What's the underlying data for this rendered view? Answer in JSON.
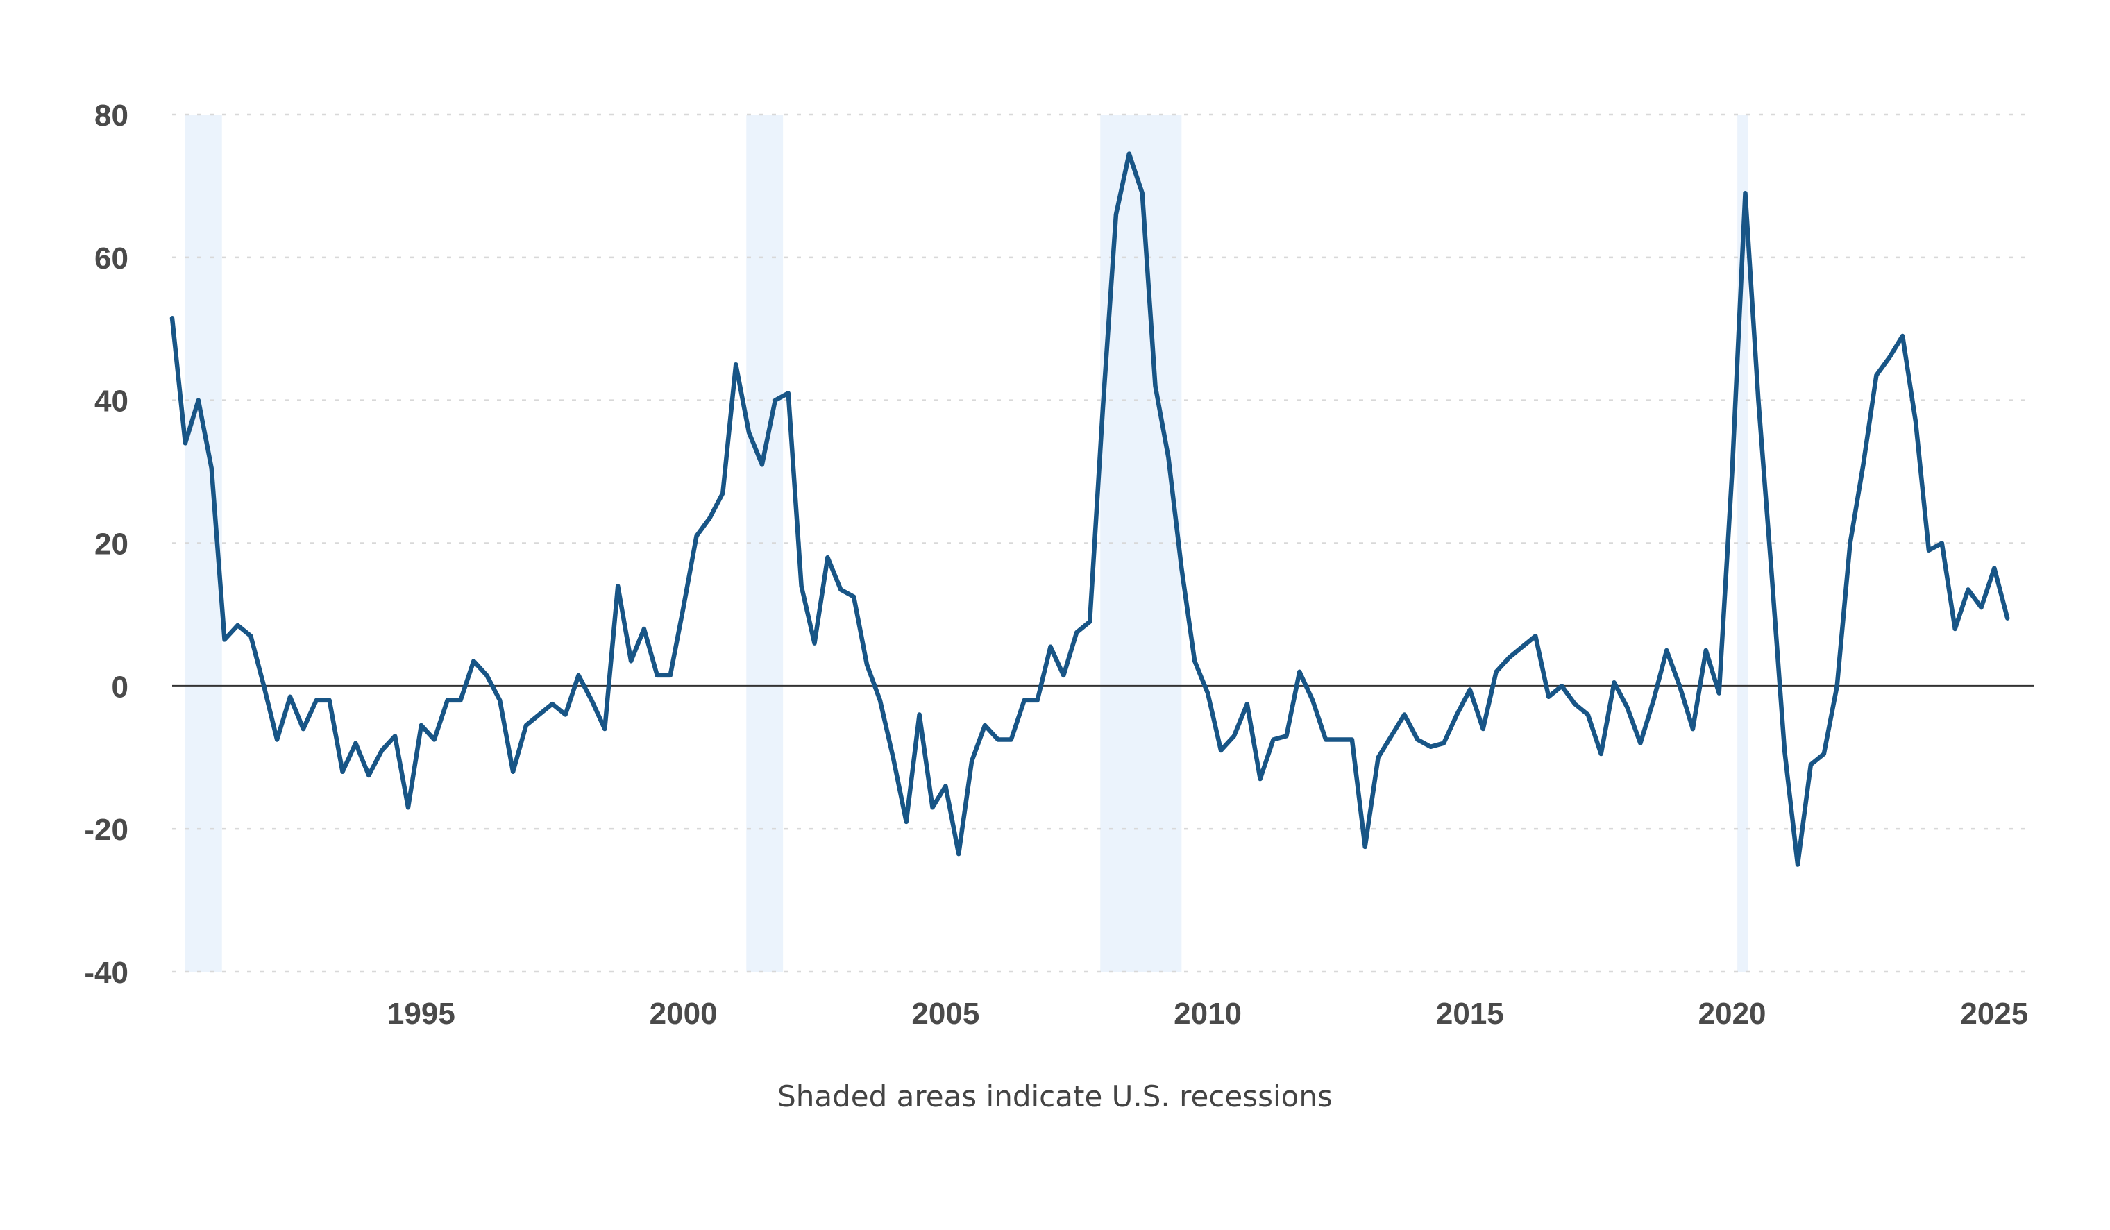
{
  "colors": {
    "line": "#185586",
    "recession": "#ebf3fc",
    "grid": "#d8d8d8",
    "zero": "#333333",
    "text": "#4a4a4a"
  },
  "caption": "Shaded areas indicate U.S. recessions",
  "chart_data": {
    "type": "line",
    "title": "",
    "xlabel": "",
    "ylabel": "",
    "xlim": [
      1990.25,
      2025.75
    ],
    "ylim": [
      -40,
      80
    ],
    "grid": true,
    "y_ticks": [
      80,
      60,
      40,
      20,
      0,
      -20,
      -40
    ],
    "y_tick_labels": [
      "80",
      "60",
      "40",
      "20",
      "0",
      "-20",
      "-40"
    ],
    "x_ticks": [
      1995,
      2000,
      2005,
      2010,
      2015,
      2020,
      2025
    ],
    "x_tick_labels": [
      "1995",
      "2000",
      "2005",
      "2010",
      "2015",
      "2020",
      "2025"
    ],
    "recessions": [
      [
        1990.5,
        1991.2
      ],
      [
        2001.2,
        2001.9
      ],
      [
        2007.95,
        2009.5
      ],
      [
        2020.1,
        2020.3
      ]
    ],
    "series": [
      {
        "points": [
          [
            1990.25,
            51.5
          ],
          [
            1990.5,
            34
          ],
          [
            1990.75,
            40
          ],
          [
            1991.0,
            30.5
          ],
          [
            1991.25,
            6.5
          ],
          [
            1991.5,
            8.5
          ],
          [
            1991.75,
            7
          ],
          [
            1992.0,
            0
          ],
          [
            1992.25,
            -7.5
          ],
          [
            1992.5,
            -1.5
          ],
          [
            1992.75,
            -6
          ],
          [
            1993.0,
            -2
          ],
          [
            1993.25,
            -2
          ],
          [
            1993.5,
            -12
          ],
          [
            1993.75,
            -8
          ],
          [
            1994.0,
            -12.5
          ],
          [
            1994.25,
            -9
          ],
          [
            1994.5,
            -7
          ],
          [
            1994.75,
            -17
          ],
          [
            1995.0,
            -5.5
          ],
          [
            1995.25,
            -7.5
          ],
          [
            1995.5,
            -2
          ],
          [
            1995.75,
            -2
          ],
          [
            1996.0,
            3.5
          ],
          [
            1996.25,
            1.5
          ],
          [
            1996.5,
            -2
          ],
          [
            1996.75,
            -12
          ],
          [
            1997.0,
            -5.5
          ],
          [
            1997.25,
            -4
          ],
          [
            1997.5,
            -2.5
          ],
          [
            1997.75,
            -4
          ],
          [
            1998.0,
            1.5
          ],
          [
            1998.25,
            -2
          ],
          [
            1998.5,
            -6
          ],
          [
            1998.75,
            14
          ],
          [
            1999.0,
            3.5
          ],
          [
            1999.25,
            8
          ],
          [
            1999.5,
            1.5
          ],
          [
            1999.75,
            1.5
          ],
          [
            2000.0,
            11
          ],
          [
            2000.25,
            21
          ],
          [
            2000.5,
            23.5
          ],
          [
            2000.75,
            27
          ],
          [
            2001.0,
            45
          ],
          [
            2001.25,
            35.5
          ],
          [
            2001.5,
            31
          ],
          [
            2001.75,
            40
          ],
          [
            2002.0,
            41
          ],
          [
            2002.25,
            14
          ],
          [
            2002.5,
            6
          ],
          [
            2002.75,
            18
          ],
          [
            2003.0,
            13.5
          ],
          [
            2003.25,
            12.5
          ],
          [
            2003.5,
            3
          ],
          [
            2003.75,
            -2
          ],
          [
            2004.0,
            -10
          ],
          [
            2004.25,
            -19
          ],
          [
            2004.5,
            -4
          ],
          [
            2004.75,
            -17
          ],
          [
            2005.0,
            -14
          ],
          [
            2005.25,
            -23.5
          ],
          [
            2005.5,
            -10.5
          ],
          [
            2005.75,
            -5.5
          ],
          [
            2006.0,
            -7.5
          ],
          [
            2006.25,
            -7.5
          ],
          [
            2006.5,
            -2
          ],
          [
            2006.75,
            -2
          ],
          [
            2007.0,
            5.5
          ],
          [
            2007.25,
            1.5
          ],
          [
            2007.5,
            7.5
          ],
          [
            2007.75,
            9
          ],
          [
            2008.0,
            39
          ],
          [
            2008.25,
            66
          ],
          [
            2008.5,
            74.5
          ],
          [
            2008.75,
            69
          ],
          [
            2009.0,
            42
          ],
          [
            2009.25,
            32
          ],
          [
            2009.5,
            16.5
          ],
          [
            2009.75,
            3.5
          ],
          [
            2010.0,
            -1
          ],
          [
            2010.25,
            -9
          ],
          [
            2010.5,
            -7
          ],
          [
            2010.75,
            -2.5
          ],
          [
            2011.0,
            -13
          ],
          [
            2011.25,
            -7.5
          ],
          [
            2011.5,
            -7
          ],
          [
            2011.75,
            2
          ],
          [
            2012.0,
            -2
          ],
          [
            2012.25,
            -7.5
          ],
          [
            2012.5,
            -7.5
          ],
          [
            2012.75,
            -7.5
          ],
          [
            2013.0,
            -22.5
          ],
          [
            2013.25,
            -10
          ],
          [
            2013.5,
            -7
          ],
          [
            2013.75,
            -4
          ],
          [
            2014.0,
            -7.5
          ],
          [
            2014.25,
            -8.5
          ],
          [
            2014.5,
            -8
          ],
          [
            2014.75,
            -4
          ],
          [
            2015.0,
            -0.5
          ],
          [
            2015.25,
            -6
          ],
          [
            2015.5,
            2
          ],
          [
            2015.75,
            4
          ],
          [
            2016.0,
            5.5
          ],
          [
            2016.25,
            7
          ],
          [
            2016.5,
            -1.5
          ],
          [
            2016.75,
            0
          ],
          [
            2017.0,
            -2.5
          ],
          [
            2017.25,
            -4
          ],
          [
            2017.5,
            -9.5
          ],
          [
            2017.75,
            0.5
          ],
          [
            2018.0,
            -3
          ],
          [
            2018.25,
            -8
          ],
          [
            2018.5,
            -2
          ],
          [
            2018.75,
            5
          ],
          [
            2019.0,
            0
          ],
          [
            2019.25,
            -6
          ],
          [
            2019.5,
            5
          ],
          [
            2019.75,
            -1
          ],
          [
            2020.0,
            30
          ],
          [
            2020.25,
            69
          ],
          [
            2020.5,
            40
          ],
          [
            2020.75,
            16
          ],
          [
            2021.0,
            -9
          ],
          [
            2021.25,
            -25
          ],
          [
            2021.5,
            -11
          ],
          [
            2021.75,
            -9.5
          ],
          [
            2022.0,
            0
          ],
          [
            2022.25,
            20
          ],
          [
            2022.5,
            31
          ],
          [
            2022.75,
            43.5
          ],
          [
            2023.0,
            46
          ],
          [
            2023.25,
            49
          ],
          [
            2023.5,
            37
          ],
          [
            2023.75,
            19
          ],
          [
            2024.0,
            20
          ],
          [
            2024.25,
            8
          ],
          [
            2024.5,
            13.5
          ],
          [
            2024.75,
            11
          ],
          [
            2025.0,
            16.5
          ],
          [
            2025.25,
            9.5
          ]
        ]
      }
    ]
  }
}
